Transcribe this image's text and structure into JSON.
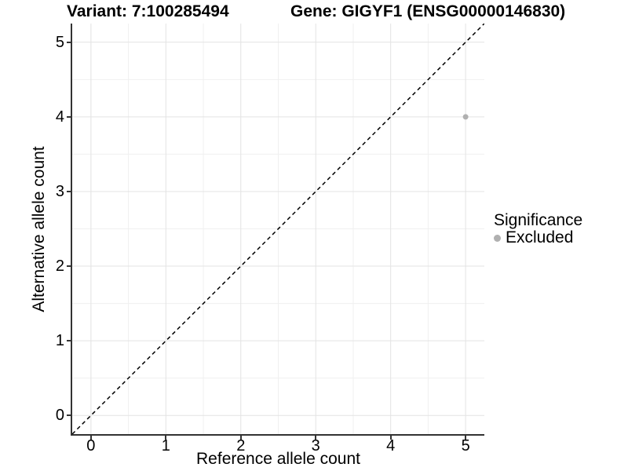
{
  "title": {
    "variant": "Variant: 7:100285494",
    "gene": "Gene: GIGYF1 (ENSG00000146830)"
  },
  "chart_data": {
    "type": "scatter",
    "title_left": "Variant: 7:100285494",
    "title_right": "Gene: GIGYF1 (ENSG00000146830)",
    "xlabel": "Reference allele count",
    "ylabel": "Alternative allele count",
    "xlim": [
      -0.25,
      5.25
    ],
    "ylim": [
      -0.25,
      5.25
    ],
    "xticks": [
      0,
      1,
      2,
      3,
      4,
      5
    ],
    "yticks": [
      0,
      1,
      2,
      3,
      4,
      5
    ],
    "minor_ticks": [
      0.5,
      1.5,
      2.5,
      3.5,
      4.5
    ],
    "grid": "on",
    "points": [
      {
        "x": 5,
        "y": 4,
        "series": "Excluded"
      }
    ],
    "reference_line": {
      "type": "abline",
      "slope": 1,
      "intercept": 0,
      "linestyle": "dashed",
      "color": "#000000"
    },
    "legend": {
      "title": "Significance",
      "position": "right",
      "entries": [
        {
          "label": "Excluded",
          "color": "#b0b0b0"
        }
      ]
    },
    "colors": {
      "point": "#b0b0b0",
      "axis_line": "#333333",
      "major_grid": "#e3e3e3",
      "minor_grid": "#f0f0f0",
      "background": "#ffffff",
      "text": "#000000"
    }
  }
}
